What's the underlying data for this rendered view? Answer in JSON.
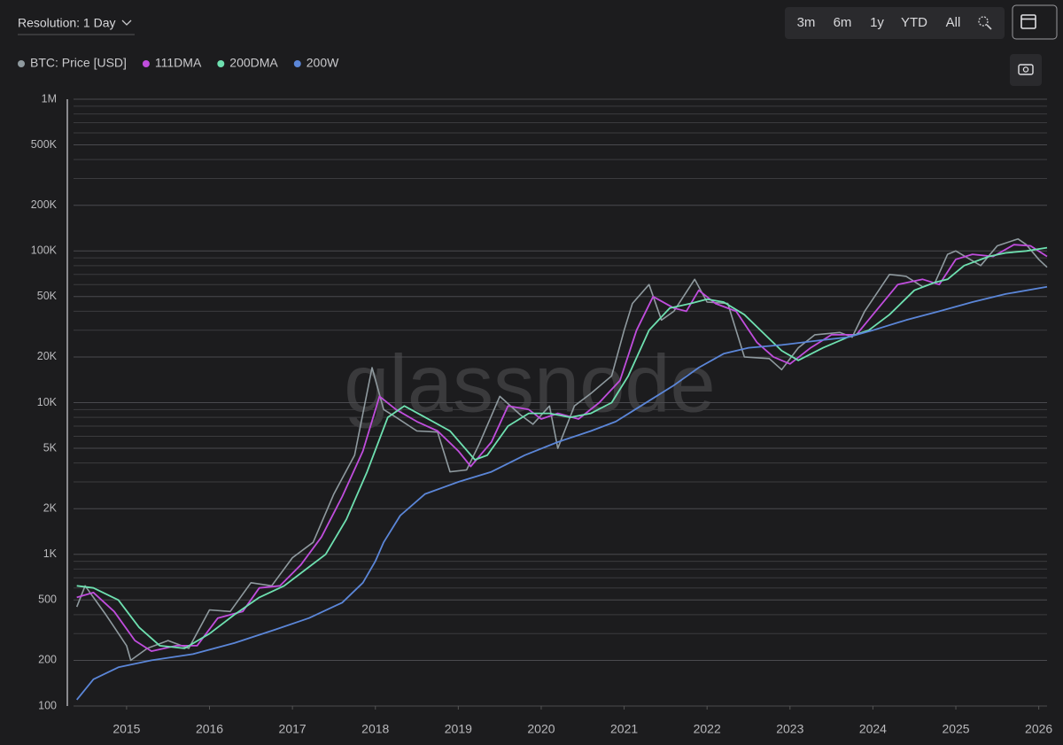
{
  "toolbar": {
    "resolution": "Resolution: 1 Day",
    "ranges": [
      "3m",
      "6m",
      "1y",
      "YTD",
      "All"
    ]
  },
  "watermark": "glassnode",
  "chart_data": {
    "type": "line",
    "log_scale": true,
    "grid": true,
    "xlim": [
      2014.36,
      2026.1
    ],
    "xticks": [
      2015,
      2016,
      2017,
      2018,
      2019,
      2020,
      2021,
      2022,
      2023,
      2024,
      2025,
      2026
    ],
    "ylim": [
      100,
      1000000
    ],
    "yticks": [
      100,
      200,
      500,
      {
        "value": 1000,
        "label": "1K"
      },
      {
        "value": 2000,
        "label": "2K"
      },
      {
        "value": 5000,
        "label": "5K"
      },
      {
        "value": 10000,
        "label": "10K"
      },
      {
        "value": 20000,
        "label": "20K"
      },
      {
        "value": 50000,
        "label": "50K"
      },
      {
        "value": 100000,
        "label": "100K"
      },
      {
        "value": 200000,
        "label": "200K"
      },
      {
        "value": 500000,
        "label": "500K"
      },
      {
        "value": 1000000,
        "label": "1M"
      }
    ],
    "yminorticks": [
      300,
      400,
      600,
      700,
      800,
      900,
      3000,
      4000,
      6000,
      7000,
      8000,
      9000,
      30000,
      40000,
      60000,
      70000,
      80000,
      90000,
      300000,
      400000,
      600000,
      700000,
      800000,
      900000
    ],
    "series": [
      {
        "name": "BTC: Price [USD]",
        "color": "#8f9a9f",
        "x": [
          2014.4,
          2014.5,
          2014.75,
          2015.0,
          2015.05,
          2015.25,
          2015.5,
          2015.75,
          2016.0,
          2016.25,
          2016.5,
          2016.75,
          2017.0,
          2017.25,
          2017.5,
          2017.75,
          2017.96,
          2018.1,
          2018.25,
          2018.5,
          2018.75,
          2018.9,
          2019.1,
          2019.25,
          2019.5,
          2019.75,
          2019.9,
          2020.1,
          2020.2,
          2020.4,
          2020.6,
          2020.85,
          2021.0,
          2021.1,
          2021.3,
          2021.45,
          2021.6,
          2021.85,
          2022.0,
          2022.25,
          2022.45,
          2022.75,
          2022.9,
          2023.1,
          2023.3,
          2023.6,
          2023.75,
          2023.9,
          2024.2,
          2024.4,
          2024.6,
          2024.75,
          2024.9,
          2025.0,
          2025.3,
          2025.5,
          2025.75,
          2025.85,
          2026.0,
          2026.1
        ],
        "values": [
          450,
          620,
          400,
          250,
          200,
          240,
          270,
          240,
          430,
          420,
          650,
          620,
          950,
          1200,
          2500,
          4500,
          17000,
          9000,
          8000,
          6500,
          6400,
          3500,
          3600,
          5300,
          11000,
          8300,
          7200,
          9500,
          5000,
          9500,
          11500,
          15000,
          30000,
          45000,
          60000,
          35000,
          40000,
          65000,
          46000,
          45000,
          20000,
          19500,
          16500,
          23000,
          28000,
          29000,
          27000,
          40000,
          70000,
          68000,
          58000,
          62000,
          95000,
          100000,
          80000,
          108000,
          120000,
          110000,
          88000,
          78000
        ]
      },
      {
        "name": "111DMA",
        "color": "#c04ddd",
        "x": [
          2014.4,
          2014.6,
          2014.85,
          2015.1,
          2015.3,
          2015.6,
          2015.85,
          2016.1,
          2016.4,
          2016.6,
          2016.85,
          2017.1,
          2017.35,
          2017.6,
          2017.85,
          2018.05,
          2018.25,
          2018.5,
          2018.75,
          2019.0,
          2019.15,
          2019.4,
          2019.6,
          2019.85,
          2020.0,
          2020.2,
          2020.45,
          2020.7,
          2020.95,
          2021.15,
          2021.35,
          2021.6,
          2021.75,
          2021.9,
          2022.1,
          2022.35,
          2022.6,
          2022.8,
          2023.0,
          2023.25,
          2023.5,
          2023.8,
          2024.0,
          2024.3,
          2024.6,
          2024.8,
          2025.0,
          2025.2,
          2025.45,
          2025.7,
          2025.9,
          2026.1
        ],
        "values": [
          520,
          560,
          420,
          270,
          230,
          250,
          250,
          380,
          420,
          600,
          620,
          850,
          1300,
          2400,
          4800,
          11000,
          9000,
          7500,
          6500,
          4800,
          3800,
          5500,
          9500,
          9000,
          7800,
          8500,
          7800,
          10000,
          14000,
          30000,
          50000,
          42000,
          40000,
          55000,
          45000,
          40000,
          25000,
          20000,
          18000,
          23000,
          28000,
          28000,
          38000,
          60000,
          65000,
          60000,
          88000,
          95000,
          92000,
          110000,
          108000,
          92000
        ]
      },
      {
        "name": "200DMA",
        "color": "#6ee0b0",
        "x": [
          2014.4,
          2014.6,
          2014.9,
          2015.15,
          2015.4,
          2015.7,
          2016.0,
          2016.3,
          2016.6,
          2016.9,
          2017.1,
          2017.4,
          2017.65,
          2017.9,
          2018.15,
          2018.35,
          2018.6,
          2018.9,
          2019.2,
          2019.35,
          2019.6,
          2019.85,
          2020.1,
          2020.35,
          2020.6,
          2020.85,
          2021.05,
          2021.3,
          2021.55,
          2021.8,
          2022.0,
          2022.2,
          2022.45,
          2022.7,
          2022.9,
          2023.1,
          2023.4,
          2023.7,
          2023.95,
          2024.2,
          2024.5,
          2024.75,
          2024.9,
          2025.1,
          2025.4,
          2025.6,
          2025.85,
          2026.1
        ],
        "values": [
          620,
          600,
          500,
          330,
          250,
          240,
          300,
          400,
          520,
          620,
          750,
          1000,
          1700,
          3500,
          8000,
          9500,
          8000,
          6500,
          4200,
          4500,
          7000,
          8500,
          8500,
          8000,
          8500,
          10000,
          15000,
          30000,
          42000,
          45000,
          48000,
          46000,
          38000,
          28000,
          22000,
          19000,
          23000,
          27000,
          30000,
          38000,
          55000,
          62000,
          65000,
          80000,
          92000,
          97000,
          100000,
          105000
        ]
      },
      {
        "name": "200W",
        "color": "#5b86d8",
        "x": [
          2014.4,
          2014.6,
          2014.9,
          2015.3,
          2015.8,
          2016.3,
          2016.8,
          2017.2,
          2017.6,
          2017.85,
          2018.0,
          2018.1,
          2018.3,
          2018.6,
          2019.0,
          2019.4,
          2019.8,
          2020.2,
          2020.6,
          2020.9,
          2021.2,
          2021.6,
          2021.9,
          2022.2,
          2022.5,
          2022.9,
          2023.3,
          2023.7,
          2024.0,
          2024.4,
          2024.8,
          2025.2,
          2025.6,
          2026.1
        ],
        "values": [
          110,
          150,
          180,
          200,
          220,
          260,
          320,
          380,
          480,
          650,
          900,
          1200,
          1800,
          2500,
          3000,
          3500,
          4500,
          5500,
          6500,
          7500,
          9500,
          13000,
          17000,
          21000,
          23000,
          24000,
          25500,
          27000,
          30000,
          35000,
          40000,
          46000,
          52000,
          58000
        ]
      }
    ]
  }
}
